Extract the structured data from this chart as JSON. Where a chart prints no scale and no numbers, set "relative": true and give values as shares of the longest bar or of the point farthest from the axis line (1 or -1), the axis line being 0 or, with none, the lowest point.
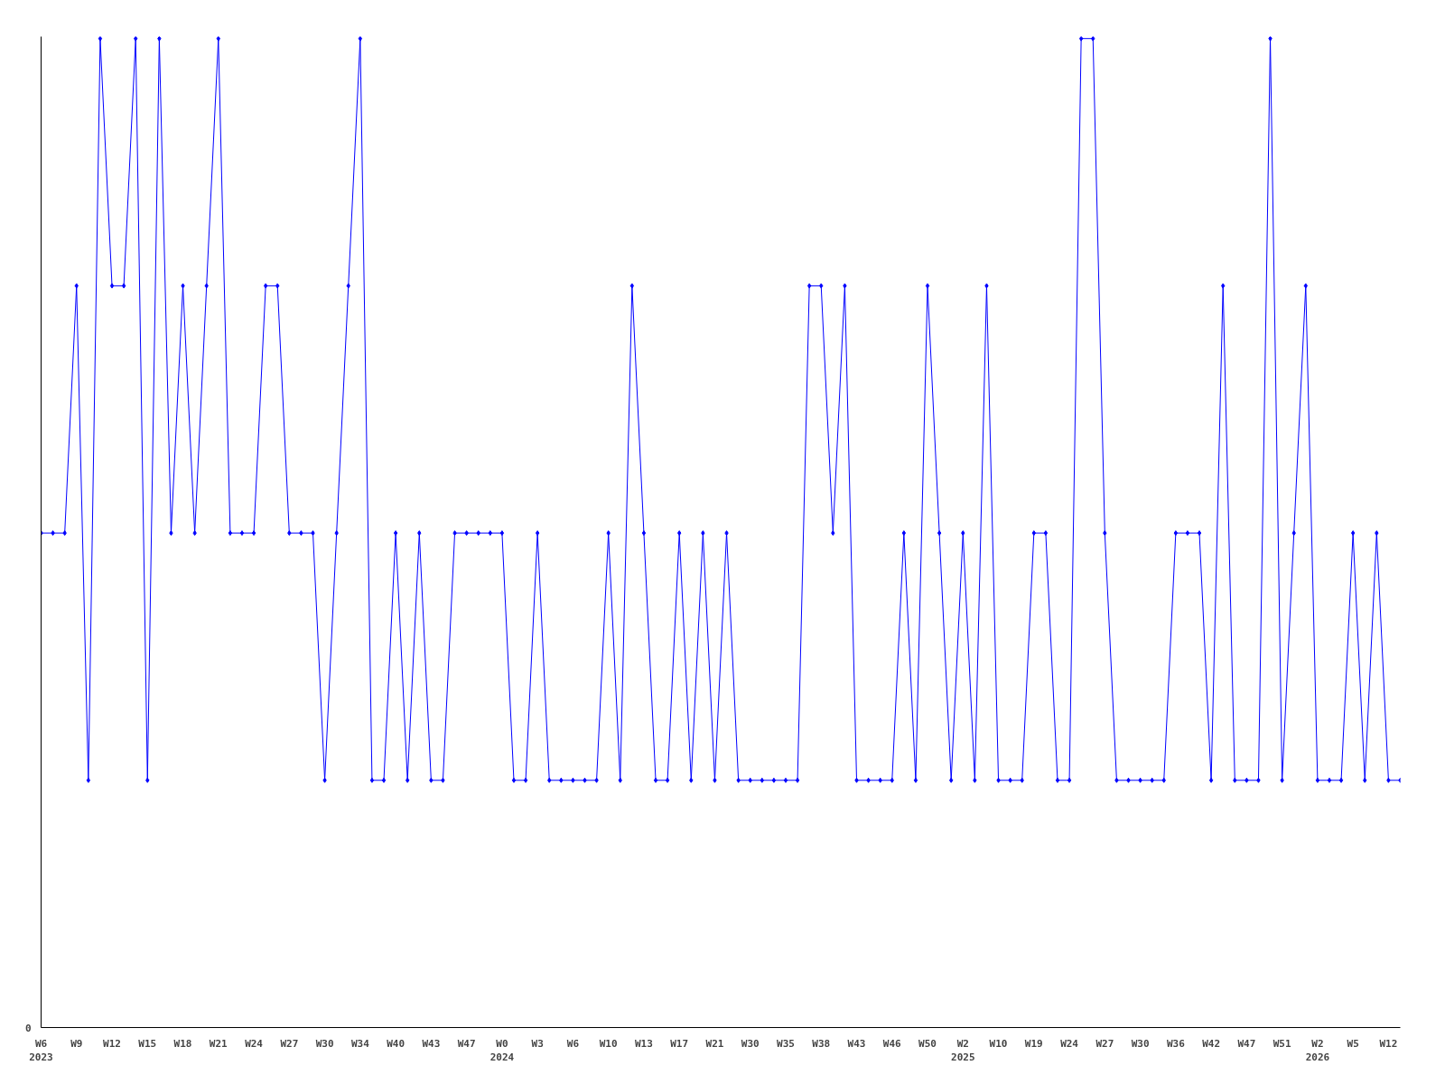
{
  "chart_data": {
    "type": "line",
    "relative": true,
    "marker": "diamond",
    "line_style": "solid",
    "grid": false,
    "annotations": [
      "0"
    ],
    "categories": [
      "W6\n2023",
      null,
      null,
      "W9",
      null,
      null,
      "W12",
      null,
      null,
      "W15",
      null,
      null,
      "W18",
      null,
      null,
      "W21",
      null,
      null,
      "W24",
      null,
      null,
      "W27",
      null,
      null,
      "W30",
      null,
      null,
      "W34",
      null,
      null,
      "W40",
      null,
      null,
      "W43",
      null,
      null,
      "W47",
      null,
      null,
      "W0\n2024",
      null,
      null,
      "W3",
      null,
      null,
      "W6",
      null,
      null,
      "W10",
      null,
      null,
      "W13",
      null,
      null,
      "W17",
      null,
      null,
      "W21",
      null,
      null,
      "W30",
      null,
      null,
      "W35",
      null,
      null,
      "W38",
      null,
      null,
      "W43",
      null,
      null,
      "W46",
      null,
      null,
      "W50",
      null,
      null,
      "W2\n2025",
      null,
      null,
      "W10",
      null,
      null,
      "W19",
      null,
      null,
      "W24",
      null,
      null,
      "W27",
      null,
      null,
      "W30",
      null,
      null,
      "W36",
      null,
      null,
      "W42",
      null,
      null,
      "W47",
      null,
      null,
      "W51",
      null,
      null,
      "W2\n2026",
      null,
      null,
      "W5",
      null,
      null,
      "W12",
      null
    ],
    "series": [
      {
        "color": "#0000ff",
        "values": [
          0.5,
          0.5,
          0.5,
          0.75,
          0.25,
          1,
          0.75,
          0.75,
          1,
          0.25,
          1,
          0.5,
          0.75,
          0.5,
          0.75,
          1,
          0.5,
          0.5,
          0.5,
          0.75,
          0.75,
          0.5,
          0.5,
          0.5,
          0.25,
          0.5,
          0.75,
          1,
          0.25,
          0.25,
          0.5,
          0.25,
          0.5,
          0.25,
          0.25,
          0.5,
          0.5,
          0.5,
          0.5,
          0.5,
          0.25,
          0.25,
          0.5,
          0.25,
          0.25,
          0.25,
          0.25,
          0.25,
          0.5,
          0.25,
          0.75,
          0.5,
          0.25,
          0.25,
          0.5,
          0.25,
          0.5,
          0.25,
          0.5,
          0.25,
          0.25,
          0.25,
          0.25,
          0.25,
          0.25,
          0.75,
          0.75,
          0.5,
          0.75,
          0.25,
          0.25,
          0.25,
          0.25,
          0.5,
          0.25,
          0.75,
          0.5,
          0.25,
          0.5,
          0.25,
          0.75,
          0.25,
          0.25,
          0.25,
          0.5,
          0.5,
          0.25,
          0.25,
          1,
          1,
          0.5,
          0.25,
          0.25,
          0.25,
          0.25,
          0.25,
          0.5,
          0.5,
          0.5,
          0.25,
          0.75,
          0.25,
          0.25,
          0.25,
          1,
          0.25,
          0.5,
          0.75,
          0.25,
          0.25,
          0.25,
          0.5,
          0.25,
          0.5,
          0.25,
          0.25
        ]
      }
    ]
  }
}
